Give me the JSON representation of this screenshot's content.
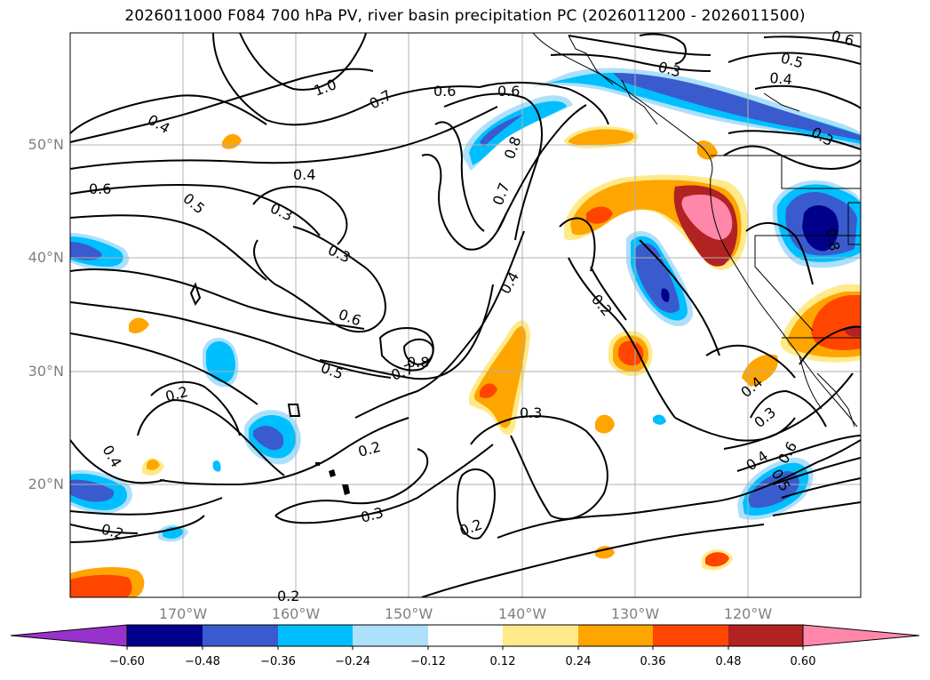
{
  "title": "2026011000 F084 700 hPa PV, river basin precipitation PC (2026011200 - 2026011500)",
  "lat_labels": [
    "50°N",
    "40°N",
    "30°N",
    "20°N"
  ],
  "lon_labels": [
    "170°W",
    "160°W",
    "150°W",
    "140°W",
    "130°W",
    "120°W"
  ],
  "contour_labels": [
    "0.4",
    "1.0",
    "0.7",
    "0.6",
    "0.6",
    "0.3",
    "0.5",
    "0.4",
    "0.3",
    "0.6",
    "0.5",
    "0.4",
    "0.8",
    "0.7",
    "0.3",
    "0.6",
    "0.5",
    "0.8",
    "0.7",
    "0.2",
    "0.3",
    "0.4",
    "0.2",
    "0.2",
    "0.4",
    "0.3",
    "0.2",
    "0.2",
    "0.4",
    "0.3",
    "0.4",
    "0.3",
    "0.5",
    "0.6",
    "0.2",
    "0.8",
    "0.6"
  ],
  "colorbar": {
    "colors": [
      "#9932cc",
      "#00008b",
      "#3a5bcd",
      "#00bfff",
      "#ade0fa",
      "#ffffff",
      "#ffea8a",
      "#ffa500",
      "#ff4500",
      "#b22222",
      "#ff88aa"
    ],
    "ticks": [
      "−0.60",
      "−0.48",
      "−0.36",
      "−0.24",
      "−0.12",
      "0.12",
      "0.24",
      "0.36",
      "0.48",
      "0.60"
    ]
  }
}
